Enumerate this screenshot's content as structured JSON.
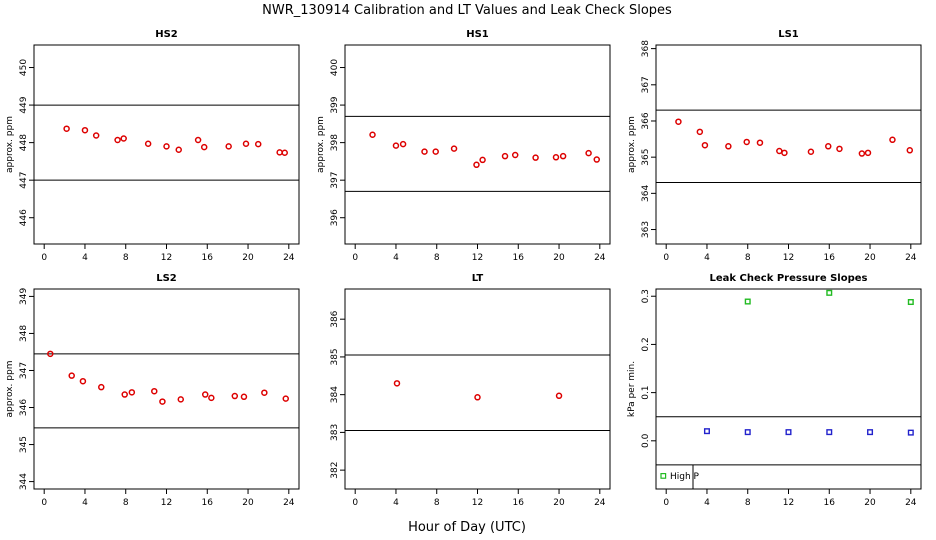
{
  "figure": {
    "title": "NWR_130914  Calibration and LT Values and Leak Check Slopes",
    "xlabel": "Hour of Day (UTC)"
  },
  "chart_data": [
    {
      "id": "hs2",
      "type": "scatter",
      "title": "HS2",
      "ylabel": "approx. ppm",
      "xlim": [
        -1,
        25
      ],
      "ylim": [
        445.3,
        450.6
      ],
      "xticks": [
        0,
        4,
        8,
        12,
        16,
        20,
        24
      ],
      "yticks": [
        446,
        447,
        448,
        449,
        450
      ],
      "hlines": [
        449,
        447
      ],
      "marker": "circle",
      "color": "#dd0000",
      "series": [
        {
          "x": [
            2.2,
            4.0,
            5.1,
            7.2,
            7.8,
            10.2,
            12.0,
            13.2,
            15.1,
            15.7,
            18.1,
            19.8,
            21.0,
            23.1,
            23.6
          ],
          "y": [
            448.37,
            448.33,
            448.19,
            448.07,
            448.11,
            447.97,
            447.9,
            447.81,
            448.07,
            447.88,
            447.9,
            447.97,
            447.96,
            447.74,
            447.73
          ]
        }
      ]
    },
    {
      "id": "hs1",
      "type": "scatter",
      "title": "HS1",
      "ylabel": "approx. ppm",
      "xlim": [
        -1,
        25
      ],
      "ylim": [
        395.3,
        400.6
      ],
      "xticks": [
        0,
        4,
        8,
        12,
        16,
        20,
        24
      ],
      "yticks": [
        396,
        397,
        398,
        399,
        400
      ],
      "hlines": [
        398.7,
        396.7
      ],
      "marker": "circle",
      "color": "#dd0000",
      "series": [
        {
          "x": [
            1.7,
            4.0,
            4.7,
            6.8,
            7.9,
            9.7,
            11.9,
            12.5,
            14.7,
            15.7,
            17.7,
            19.7,
            20.4,
            22.9,
            23.7
          ],
          "y": [
            398.21,
            397.92,
            397.96,
            397.76,
            397.76,
            397.84,
            397.41,
            397.54,
            397.64,
            397.67,
            397.6,
            397.61,
            397.64,
            397.72,
            397.55
          ]
        }
      ]
    },
    {
      "id": "ls1",
      "type": "scatter",
      "title": "LS1",
      "ylabel": "approx. ppm",
      "xlim": [
        -1,
        25
      ],
      "ylim": [
        362.6,
        368.1
      ],
      "xticks": [
        0,
        4,
        8,
        12,
        16,
        20,
        24
      ],
      "yticks": [
        363,
        364,
        365,
        366,
        367,
        368
      ],
      "hlines": [
        366.3,
        364.3
      ],
      "marker": "circle",
      "color": "#dd0000",
      "series": [
        {
          "x": [
            1.2,
            3.3,
            3.8,
            6.1,
            7.9,
            9.2,
            11.1,
            11.6,
            14.2,
            15.9,
            17.0,
            19.2,
            19.8,
            22.2,
            23.9
          ],
          "y": [
            365.98,
            365.7,
            365.33,
            365.3,
            365.42,
            365.4,
            365.17,
            365.12,
            365.15,
            365.3,
            365.23,
            365.1,
            365.12,
            365.48,
            365.19
          ]
        }
      ]
    },
    {
      "id": "ls2",
      "type": "scatter",
      "title": "LS2",
      "ylabel": "approx. ppm",
      "xlim": [
        -1,
        25
      ],
      "ylim": [
        343.8,
        349.2
      ],
      "xticks": [
        0,
        4,
        8,
        12,
        16,
        20,
        24
      ],
      "yticks": [
        344,
        345,
        346,
        347,
        348,
        349
      ],
      "hlines": [
        347.45,
        345.45
      ],
      "marker": "circle",
      "color": "#dd0000",
      "series": [
        {
          "x": [
            0.6,
            2.7,
            3.8,
            5.6,
            7.9,
            8.6,
            10.8,
            11.6,
            13.4,
            15.8,
            16.4,
            18.7,
            19.6,
            21.6,
            23.7
          ],
          "y": [
            347.45,
            346.86,
            346.71,
            346.55,
            346.35,
            346.41,
            346.44,
            346.16,
            346.22,
            346.35,
            346.26,
            346.31,
            346.29,
            346.4,
            346.24
          ]
        }
      ]
    },
    {
      "id": "lt",
      "type": "scatter",
      "title": "LT",
      "xlim": [
        -1,
        25
      ],
      "ylim": [
        381.5,
        386.8
      ],
      "xticks": [
        0,
        4,
        8,
        12,
        16,
        20,
        24
      ],
      "yticks": [
        382,
        383,
        384,
        385,
        386
      ],
      "hlines": [
        385.05,
        383.05
      ],
      "marker": "circle",
      "color": "#dd0000",
      "series": [
        {
          "x": [
            4.1,
            12.0,
            20.0
          ],
          "y": [
            384.3,
            383.93,
            383.97
          ]
        }
      ]
    },
    {
      "id": "leak",
      "type": "scatter",
      "title": "Leak Check Pressure Slopes",
      "ylabel": "kPa per min.",
      "xlim": [
        -1,
        25
      ],
      "ylim": [
        -0.1,
        0.315
      ],
      "xticks": [
        0,
        4,
        8,
        12,
        16,
        20,
        24
      ],
      "yticks": [
        0.0,
        0.1,
        0.2,
        0.3
      ],
      "ytick_labels": [
        "0.0",
        "0.1",
        "0.2",
        "0.3"
      ],
      "hlines": [
        0.05,
        -0.05
      ],
      "marker": "square",
      "series": [
        {
          "name": "High P",
          "color": "#22bb22",
          "x": [
            8.0,
            16.0,
            24.0
          ],
          "y": [
            0.289,
            0.307,
            0.288
          ]
        },
        {
          "color": "#2222cc",
          "x": [
            4.0,
            8.0,
            12.0,
            16.0,
            20.0,
            24.0
          ],
          "y": [
            0.02,
            0.018,
            0.018,
            0.018,
            0.018,
            0.017
          ]
        }
      ],
      "legend": {
        "position": "bottom-left"
      }
    }
  ]
}
